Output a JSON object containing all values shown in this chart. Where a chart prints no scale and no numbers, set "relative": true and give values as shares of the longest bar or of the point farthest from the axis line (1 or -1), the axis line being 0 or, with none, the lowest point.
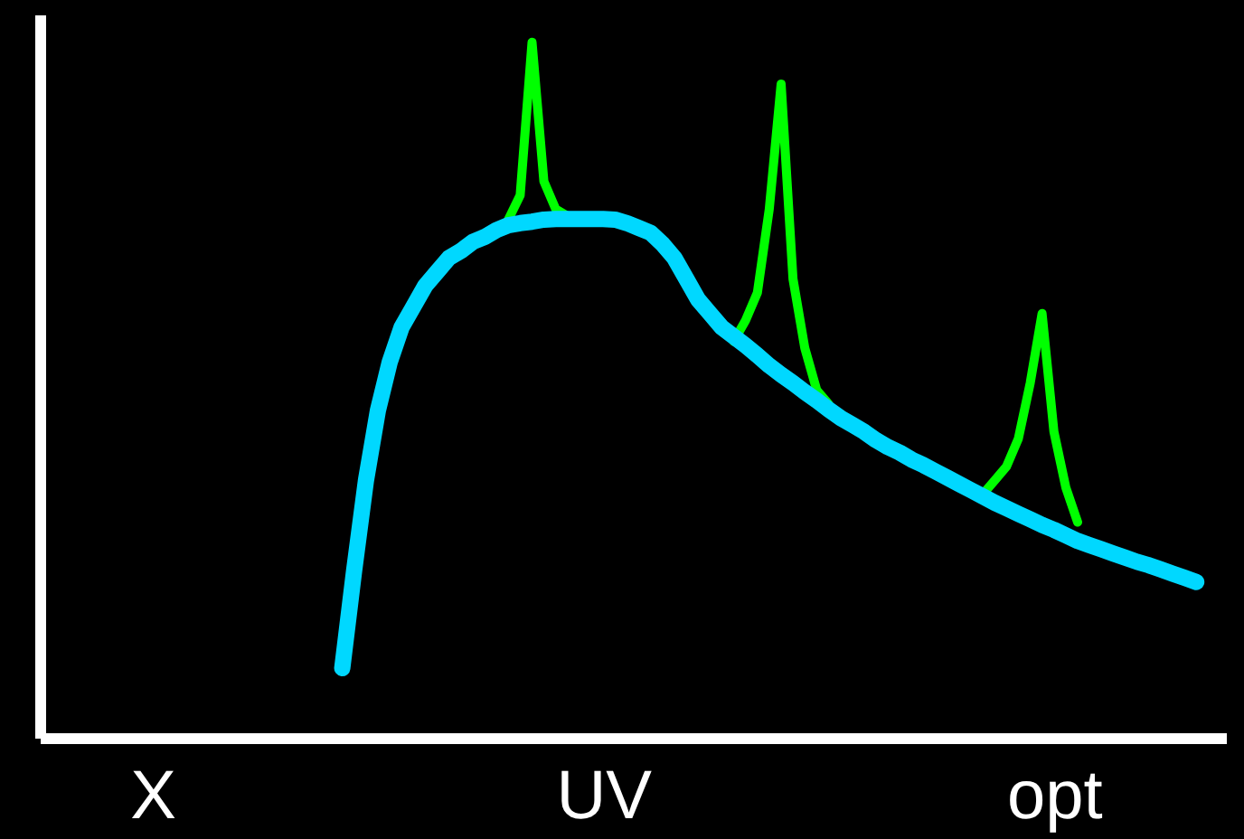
{
  "chart_data": {
    "type": "line",
    "relative": true,
    "tick_labels": "x",
    "categories": [
      null,
      null,
      null,
      null,
      null,
      null,
      null,
      null,
      null,
      "X",
      null,
      null,
      null,
      null,
      null,
      null,
      null,
      null,
      null,
      null,
      null,
      null,
      null,
      null,
      null,
      null,
      null,
      null,
      null,
      null,
      null,
      null,
      null,
      null,
      null,
      null,
      null,
      null,
      null,
      null,
      null,
      null,
      null,
      null,
      null,
      null,
      null,
      "UV",
      null,
      null,
      null,
      null,
      null,
      null,
      null,
      null,
      null,
      null,
      null,
      null,
      null,
      null,
      null,
      null,
      null,
      null,
      null,
      null,
      null,
      null,
      null,
      null,
      null,
      null,
      null,
      null,
      null,
      null,
      null,
      null,
      null,
      null,
      null,
      null,
      null,
      "opt",
      null,
      null,
      null,
      null,
      null,
      null,
      null,
      null,
      null,
      null,
      null,
      null,
      null,
      null
    ],
    "series": [
      {
        "color": "#00ff00",
        "values": [
          null,
          null,
          null,
          null,
          null,
          null,
          null,
          null,
          null,
          null,
          null,
          null,
          null,
          null,
          null,
          null,
          null,
          null,
          null,
          null,
          null,
          null,
          null,
          null,
          null,
          null,
          null,
          null,
          null,
          null,
          null,
          null,
          null,
          null,
          null,
          null,
          null,
          null,
          null,
          0.745,
          0.78,
          1.0,
          0.8,
          0.76,
          0.75,
          null,
          null,
          null,
          null,
          null,
          null,
          null,
          null,
          null,
          null,
          null,
          null,
          null,
          null,
          null,
          null,
          null,
          null,
          null,
          null,
          null,
          null,
          null,
          null,
          null,
          null,
          null,
          null,
          null,
          null,
          null,
          null,
          null,
          null,
          null,
          null,
          null,
          null,
          null,
          null,
          null,
          null,
          null,
          null,
          null,
          null,
          null,
          null,
          null,
          null,
          null,
          null,
          null,
          null,
          null
        ]
      },
      {
        "color": "#00ff00",
        "values": [
          null,
          null,
          null,
          null,
          null,
          null,
          null,
          null,
          null,
          null,
          null,
          null,
          null,
          null,
          null,
          null,
          null,
          null,
          null,
          null,
          null,
          null,
          null,
          null,
          null,
          null,
          null,
          null,
          null,
          null,
          null,
          null,
          null,
          null,
          null,
          null,
          null,
          null,
          null,
          null,
          null,
          null,
          null,
          null,
          null,
          null,
          null,
          null,
          null,
          null,
          null,
          null,
          null,
          null,
          null,
          null,
          null,
          null,
          0.57,
          0.6,
          0.64,
          0.76,
          0.94,
          0.66,
          0.56,
          0.5,
          0.48,
          null,
          null,
          null,
          null,
          null,
          null,
          null,
          null,
          null,
          null,
          null,
          null,
          null,
          null,
          null,
          null,
          null,
          null,
          null,
          null,
          null,
          null,
          null,
          null,
          null,
          null,
          null,
          null,
          null,
          null,
          null,
          null,
          null
        ]
      },
      {
        "color": "#00ff00",
        "values": [
          null,
          null,
          null,
          null,
          null,
          null,
          null,
          null,
          null,
          null,
          null,
          null,
          null,
          null,
          null,
          null,
          null,
          null,
          null,
          null,
          null,
          null,
          null,
          null,
          null,
          null,
          null,
          null,
          null,
          null,
          null,
          null,
          null,
          null,
          null,
          null,
          null,
          null,
          null,
          null,
          null,
          null,
          null,
          null,
          null,
          null,
          null,
          null,
          null,
          null,
          null,
          null,
          null,
          null,
          null,
          null,
          null,
          null,
          null,
          null,
          null,
          null,
          null,
          null,
          null,
          null,
          null,
          null,
          null,
          null,
          null,
          null,
          null,
          null,
          null,
          null,
          null,
          null,
          null,
          0.35,
          0.37,
          0.39,
          0.43,
          0.51,
          0.61,
          0.44,
          0.36,
          0.31,
          null,
          null,
          null,
          null,
          null,
          null,
          null,
          null,
          null,
          null,
          null,
          null
        ]
      },
      {
        "color": "#00d8ff",
        "values": [
          null,
          null,
          null,
          null,
          null,
          null,
          null,
          null,
          null,
          null,
          null,
          null,
          null,
          null,
          null,
          null,
          null,
          null,
          null,
          null,
          null,
          null,
          null,
          null,
          null,
          0.1,
          0.24,
          0.37,
          0.47,
          0.54,
          0.59,
          0.62,
          0.65,
          0.67,
          0.69,
          0.7,
          0.713,
          0.72,
          0.73,
          0.737,
          0.74,
          0.742,
          0.745,
          0.746,
          0.746,
          0.746,
          0.746,
          0.746,
          0.745,
          0.74,
          0.733,
          0.726,
          0.71,
          0.69,
          0.66,
          0.63,
          0.61,
          0.59,
          0.577,
          0.564,
          0.55,
          0.535,
          0.522,
          0.51,
          0.497,
          0.485,
          0.472,
          0.46,
          0.45,
          0.44,
          0.428,
          0.418,
          0.41,
          0.4,
          0.392,
          0.383,
          0.374,
          0.365,
          0.356,
          0.347,
          0.338,
          0.33,
          0.322,
          0.314,
          0.306,
          0.299,
          0.291,
          0.283,
          0.277,
          0.271,
          0.265,
          0.259,
          0.253,
          0.248,
          0.242,
          0.236,
          0.23,
          0.224,
          null,
          null
        ]
      }
    ]
  }
}
